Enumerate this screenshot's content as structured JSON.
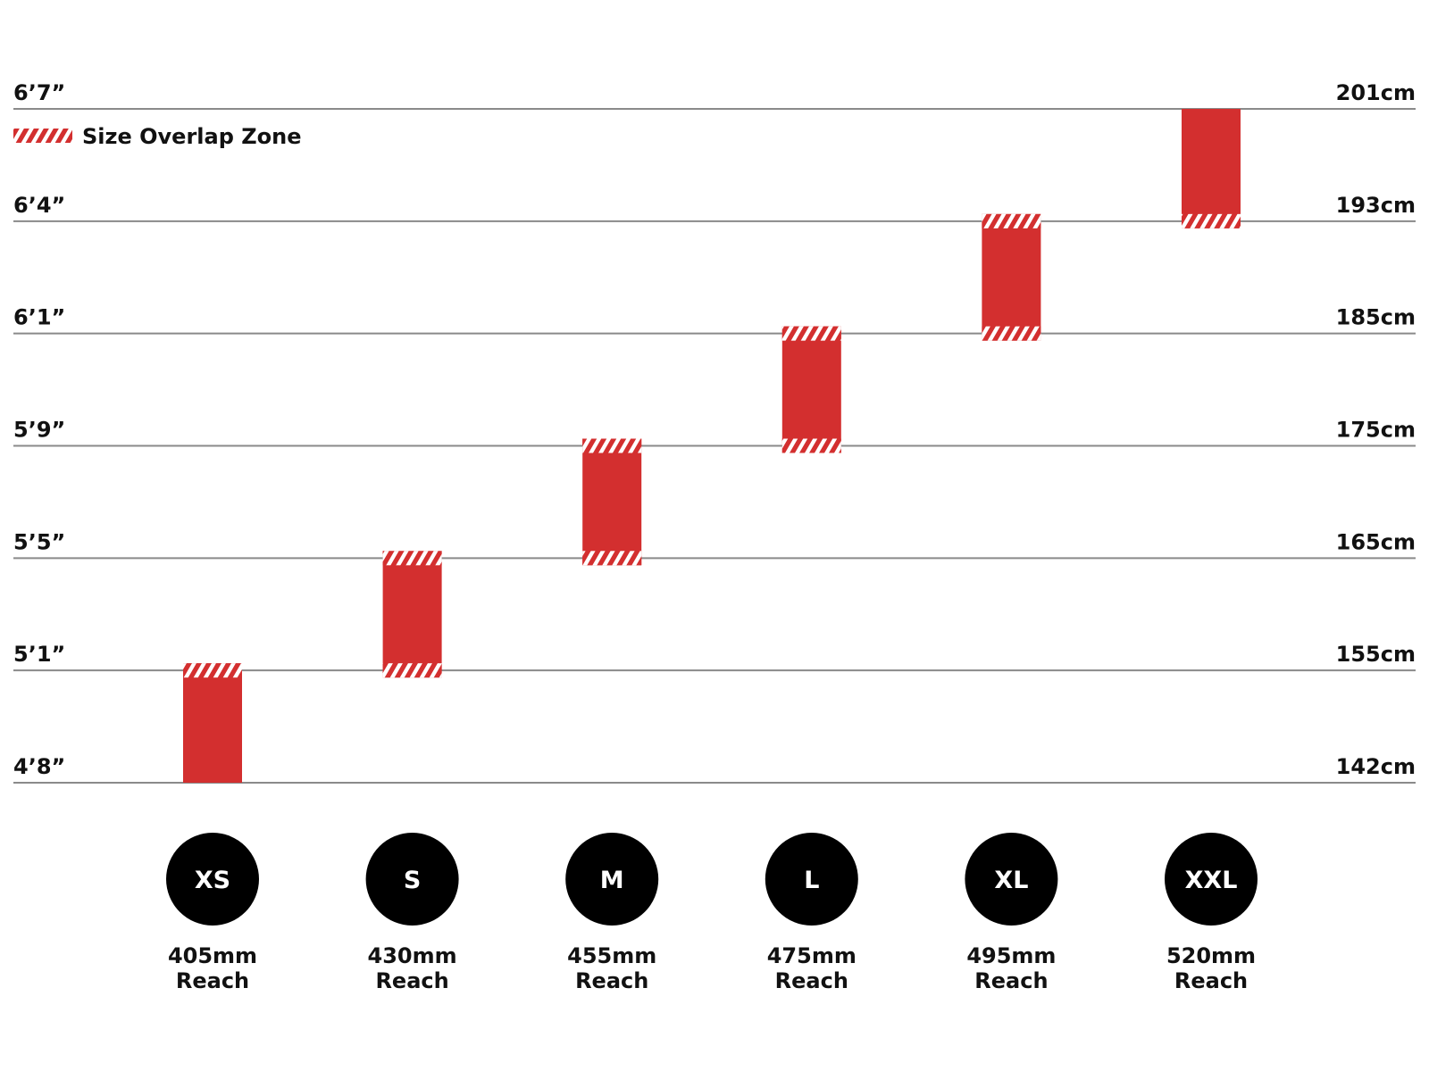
{
  "chart_data": {
    "type": "bar",
    "subtype": "floating-range",
    "title": "",
    "unit_left": "ft/in",
    "unit_right": "cm",
    "y_ticks": [
      {
        "label_left": "4’8”",
        "label_right": "142cm",
        "cm": 142
      },
      {
        "label_left": "5’1”",
        "label_right": "155cm",
        "cm": 155
      },
      {
        "label_left": "5’5”",
        "label_right": "165cm",
        "cm": 165
      },
      {
        "label_left": "5’9”",
        "label_right": "175cm",
        "cm": 175
      },
      {
        "label_left": "6’1”",
        "label_right": "185cm",
        "cm": 185
      },
      {
        "label_left": "6’4”",
        "label_right": "193cm",
        "cm": 193
      },
      {
        "label_left": "6’7”",
        "label_right": "201cm",
        "cm": 201
      }
    ],
    "legend": {
      "label": "Size Overlap Zone",
      "placement": "top-left"
    },
    "bar_color": "#d32f2f",
    "bars": [
      {
        "size": "XS",
        "reach_value": "405mm",
        "reach_label": "Reach",
        "low_cm": 142,
        "high_cm": 155,
        "overlap_low": false,
        "overlap_high": true
      },
      {
        "size": "S",
        "reach_value": "430mm",
        "reach_label": "Reach",
        "low_cm": 155,
        "high_cm": 165,
        "overlap_low": true,
        "overlap_high": true
      },
      {
        "size": "M",
        "reach_value": "455mm",
        "reach_label": "Reach",
        "low_cm": 165,
        "high_cm": 175,
        "overlap_low": true,
        "overlap_high": true
      },
      {
        "size": "L",
        "reach_value": "475mm",
        "reach_label": "Reach",
        "low_cm": 175,
        "high_cm": 185,
        "overlap_low": true,
        "overlap_high": true
      },
      {
        "size": "XL",
        "reach_value": "495mm",
        "reach_label": "Reach",
        "low_cm": 185,
        "high_cm": 193,
        "overlap_low": true,
        "overlap_high": true
      },
      {
        "size": "XXL",
        "reach_value": "520mm",
        "reach_label": "Reach",
        "low_cm": 193,
        "high_cm": 201,
        "overlap_low": true,
        "overlap_high": false
      }
    ]
  }
}
